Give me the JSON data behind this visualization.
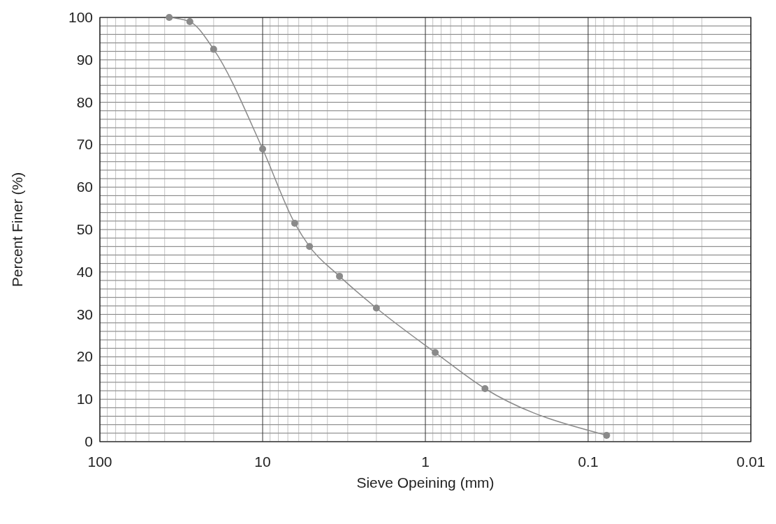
{
  "chart_data": {
    "type": "line",
    "xlabel": "Sieve Opeining (mm)",
    "ylabel": "Percent Finer (%)",
    "log": "x",
    "xlim": [
      100,
      0.01
    ],
    "xticks": [
      100,
      10,
      1,
      0.1,
      0.01
    ],
    "ylim": [
      0,
      100
    ],
    "yticks": [
      0,
      10,
      20,
      30,
      40,
      50,
      60,
      70,
      80,
      90,
      100
    ],
    "grid": true,
    "marker": "circle",
    "line_style": "solid",
    "series": [
      {
        "color": "#8a8a8a",
        "x": [
          37.5,
          28,
          20,
          10,
          6.35,
          5.15,
          3.37,
          2,
          0.87,
          0.43,
          0.077
        ],
        "values": [
          100,
          99,
          92.5,
          69,
          51.5,
          46,
          39,
          31.5,
          21,
          12.5,
          1.5
        ]
      }
    ]
  }
}
